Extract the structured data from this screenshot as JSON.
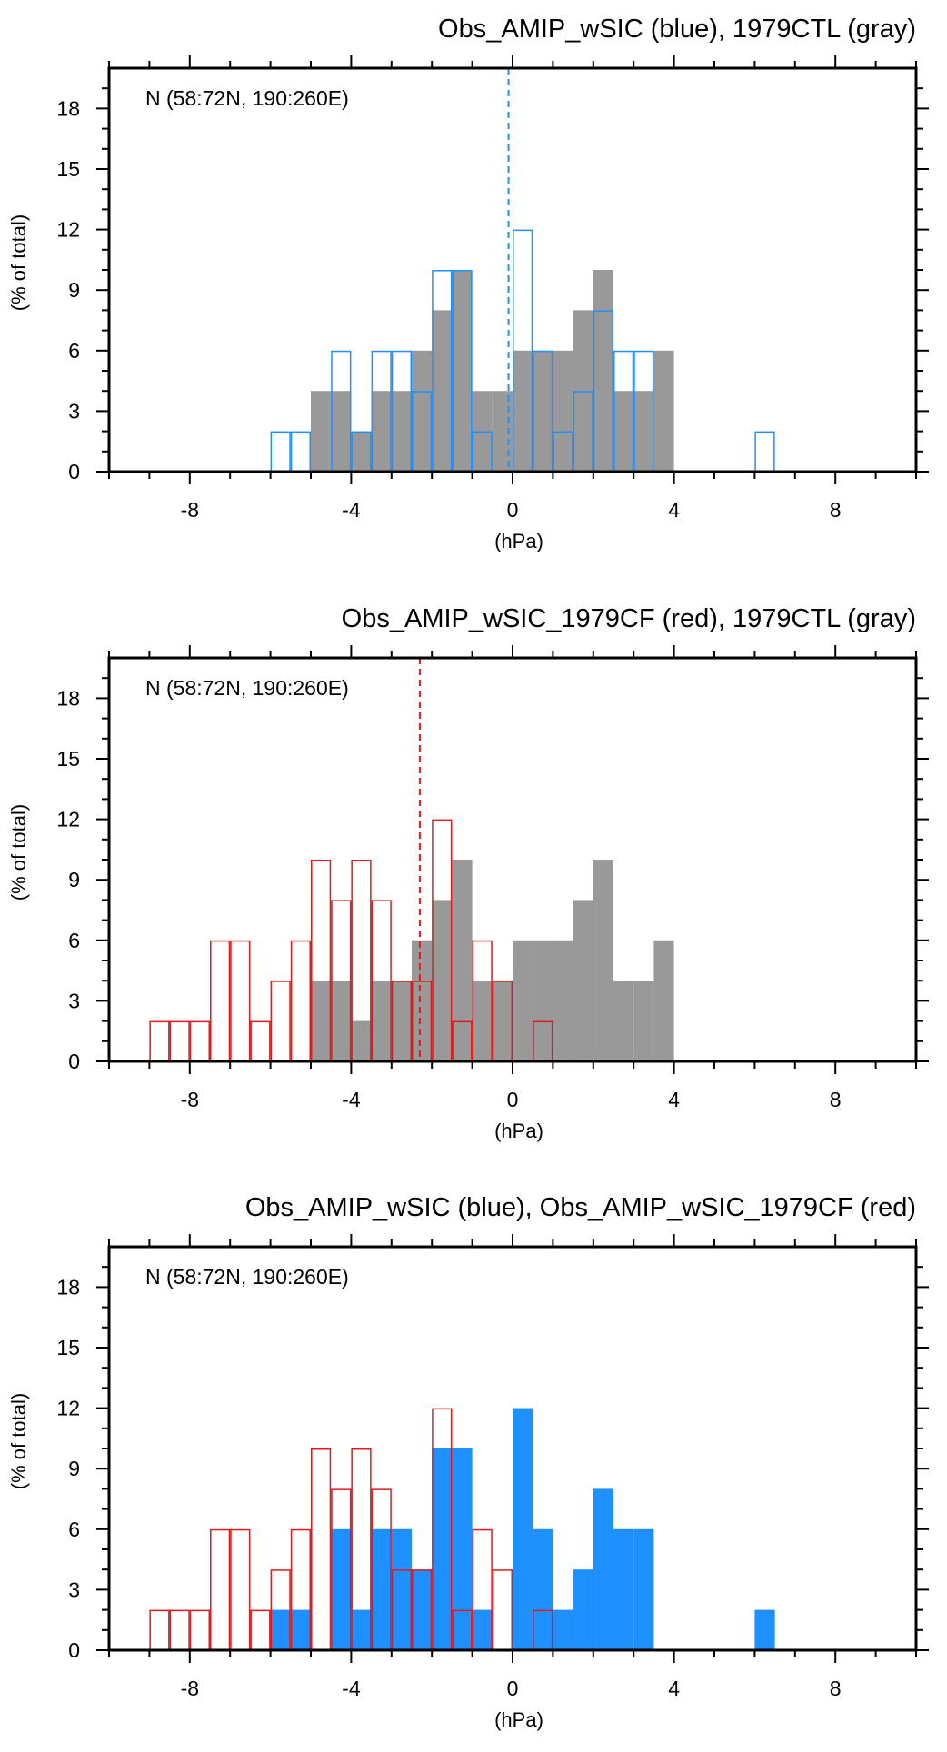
{
  "colors": {
    "blue": "#1e90ff",
    "red": "#e31a1c",
    "gray": "#999999",
    "axis": "#000000"
  },
  "chart_data": [
    {
      "type": "histogram",
      "title": "Obs_AMIP_wSIC (blue), 1979CTL (gray)",
      "annotation": "N (58:72N, 190:260E)",
      "xlabel": "(hPa)",
      "ylabel": "(% of total)",
      "xlim": [
        -10,
        10
      ],
      "ylim": [
        0,
        20
      ],
      "xticks": [
        -8,
        -4,
        0,
        4,
        8
      ],
      "yticks": [
        0,
        3,
        6,
        9,
        12,
        15,
        18
      ],
      "bin_width": 0.5,
      "series": [
        {
          "name": "1979CTL",
          "style": "filled",
          "color": "gray",
          "bin_starts": [
            -5.0,
            -4.5,
            -4.0,
            -3.5,
            -3.0,
            -2.5,
            -2.0,
            -1.5,
            -1.0,
            -0.5,
            0.0,
            0.5,
            1.0,
            1.5,
            2.0,
            2.5,
            3.0,
            3.5
          ],
          "values": [
            4,
            4,
            2,
            4,
            4,
            6,
            8,
            10,
            4,
            4,
            6,
            6,
            6,
            8,
            10,
            4,
            4,
            6
          ]
        },
        {
          "name": "Obs_AMIP_wSIC",
          "style": "outline",
          "color": "blue",
          "bin_starts": [
            -6.0,
            -5.5,
            -4.5,
            -4.0,
            -3.5,
            -3.0,
            -2.5,
            -2.0,
            -1.5,
            -1.0,
            0.0,
            0.5,
            1.0,
            1.5,
            2.0,
            2.5,
            3.0,
            6.0
          ],
          "values": [
            2,
            2,
            6,
            2,
            6,
            6,
            4,
            10,
            10,
            2,
            12,
            6,
            2,
            4,
            8,
            6,
            6,
            2
          ]
        }
      ],
      "vline": {
        "x": -0.1,
        "color": "blue"
      }
    },
    {
      "type": "histogram",
      "title": "Obs_AMIP_wSIC_1979CF (red), 1979CTL (gray)",
      "annotation": "N (58:72N, 190:260E)",
      "xlabel": "(hPa)",
      "ylabel": "(% of total)",
      "xlim": [
        -10,
        10
      ],
      "ylim": [
        0,
        20
      ],
      "xticks": [
        -8,
        -4,
        0,
        4,
        8
      ],
      "yticks": [
        0,
        3,
        6,
        9,
        12,
        15,
        18
      ],
      "bin_width": 0.5,
      "series": [
        {
          "name": "1979CTL",
          "style": "filled",
          "color": "gray",
          "bin_starts": [
            -5.0,
            -4.5,
            -4.0,
            -3.5,
            -3.0,
            -2.5,
            -2.0,
            -1.5,
            -1.0,
            -0.5,
            0.0,
            0.5,
            1.0,
            1.5,
            2.0,
            2.5,
            3.0,
            3.5
          ],
          "values": [
            4,
            4,
            2,
            4,
            4,
            6,
            8,
            10,
            4,
            4,
            6,
            6,
            6,
            8,
            10,
            4,
            4,
            6
          ]
        },
        {
          "name": "Obs_AMIP_wSIC_1979CF",
          "style": "outline",
          "color": "red",
          "bin_starts": [
            -9.0,
            -8.5,
            -8.0,
            -7.5,
            -7.0,
            -6.5,
            -6.0,
            -5.5,
            -5.0,
            -4.5,
            -4.0,
            -3.5,
            -3.0,
            -2.5,
            -2.0,
            -1.5,
            -1.0,
            -0.5,
            0.5
          ],
          "values": [
            2,
            2,
            2,
            6,
            6,
            2,
            4,
            6,
            10,
            8,
            10,
            8,
            4,
            4,
            12,
            2,
            6,
            4,
            2
          ]
        }
      ],
      "vline": {
        "x": -2.3,
        "color": "red"
      }
    },
    {
      "type": "histogram",
      "title": "Obs_AMIP_wSIC (blue), Obs_AMIP_wSIC_1979CF (red)",
      "annotation": "N (58:72N, 190:260E)",
      "xlabel": "(hPa)",
      "ylabel": "(% of total)",
      "xlim": [
        -10,
        10
      ],
      "ylim": [
        0,
        20
      ],
      "xticks": [
        -8,
        -4,
        0,
        4,
        8
      ],
      "yticks": [
        0,
        3,
        6,
        9,
        12,
        15,
        18
      ],
      "bin_width": 0.5,
      "series": [
        {
          "name": "Obs_AMIP_wSIC",
          "style": "filled",
          "color": "blue",
          "bin_starts": [
            -6.0,
            -5.5,
            -4.5,
            -4.0,
            -3.5,
            -3.0,
            -2.5,
            -2.0,
            -1.5,
            -1.0,
            0.0,
            0.5,
            1.0,
            1.5,
            2.0,
            2.5,
            3.0,
            6.0
          ],
          "values": [
            2,
            2,
            6,
            2,
            6,
            6,
            4,
            10,
            10,
            2,
            12,
            6,
            2,
            4,
            8,
            6,
            6,
            2
          ]
        },
        {
          "name": "Obs_AMIP_wSIC_1979CF",
          "style": "outline",
          "color": "red",
          "bin_starts": [
            -9.0,
            -8.5,
            -8.0,
            -7.5,
            -7.0,
            -6.5,
            -6.0,
            -5.5,
            -5.0,
            -4.5,
            -4.0,
            -3.5,
            -3.0,
            -2.5,
            -2.0,
            -1.5,
            -1.0,
            -0.5,
            0.5
          ],
          "values": [
            2,
            2,
            2,
            6,
            6,
            2,
            4,
            6,
            10,
            8,
            10,
            8,
            4,
            4,
            12,
            2,
            6,
            4,
            2
          ]
        }
      ],
      "vline": null
    }
  ]
}
